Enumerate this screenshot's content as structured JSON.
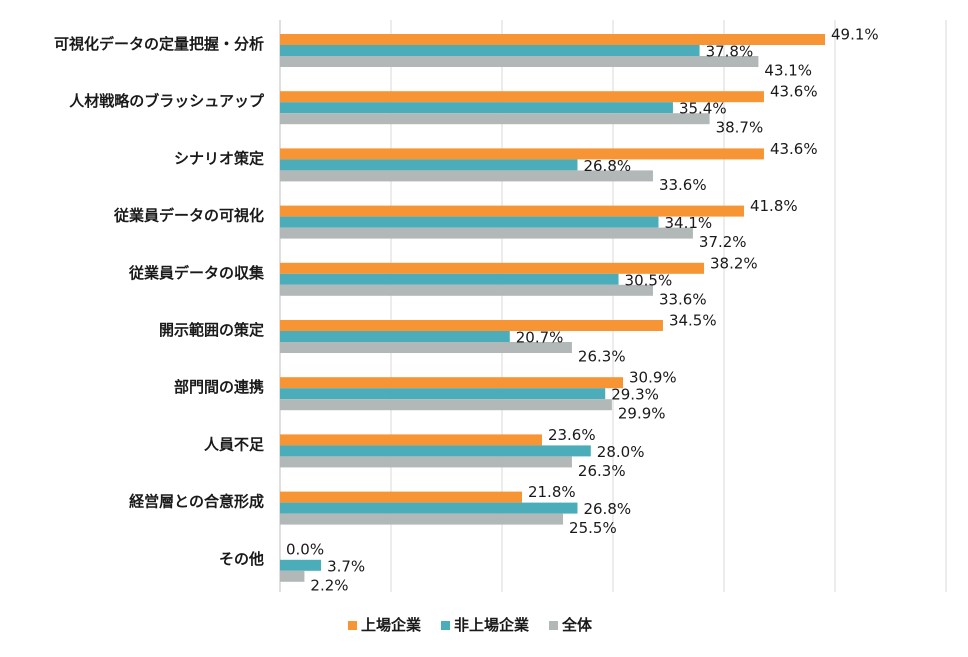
{
  "chart_data": {
    "type": "bar",
    "orientation": "horizontal",
    "categories": [
      "可視化データの定量把握・分析",
      "人材戦略のブラッシュアップ",
      "シナリオ策定",
      "従業員データの可視化",
      "従業員データの収集",
      "開示範囲の策定",
      "部門間の連携",
      "人員不足",
      "経営層との合意形成",
      "その他"
    ],
    "series": [
      {
        "name": "上場企業",
        "color": "#F79433",
        "values": [
          49.1,
          43.6,
          43.6,
          41.8,
          38.2,
          34.5,
          30.9,
          23.6,
          21.8,
          0.0
        ],
        "labels": [
          "49.1%",
          "43.6%",
          "43.6%",
          "41.8%",
          "38.2%",
          "34.5%",
          "30.9%",
          "23.6%",
          "21.8%",
          "0.0%"
        ]
      },
      {
        "name": "非上場企業",
        "color": "#4BACBA",
        "values": [
          37.8,
          35.4,
          26.8,
          34.1,
          30.5,
          20.7,
          29.3,
          28.0,
          26.8,
          3.7
        ],
        "labels": [
          "37.8%",
          "35.4%",
          "26.8%",
          "34.1%",
          "30.5%",
          "20.7%",
          "29.3%",
          "28.0%",
          "26.8%",
          "3.7%"
        ]
      },
      {
        "name": "全体",
        "color": "#B2B8B8",
        "values": [
          43.1,
          38.7,
          33.6,
          37.2,
          33.6,
          26.3,
          29.9,
          26.3,
          25.5,
          2.2
        ],
        "labels": [
          "43.1%",
          "38.7%",
          "33.6%",
          "37.2%",
          "33.6%",
          "26.3%",
          "29.9%",
          "26.3%",
          "25.5%",
          "2.2%"
        ]
      }
    ],
    "xlim": [
      0,
      60
    ],
    "gridlines": true,
    "legend_position": "bottom"
  }
}
